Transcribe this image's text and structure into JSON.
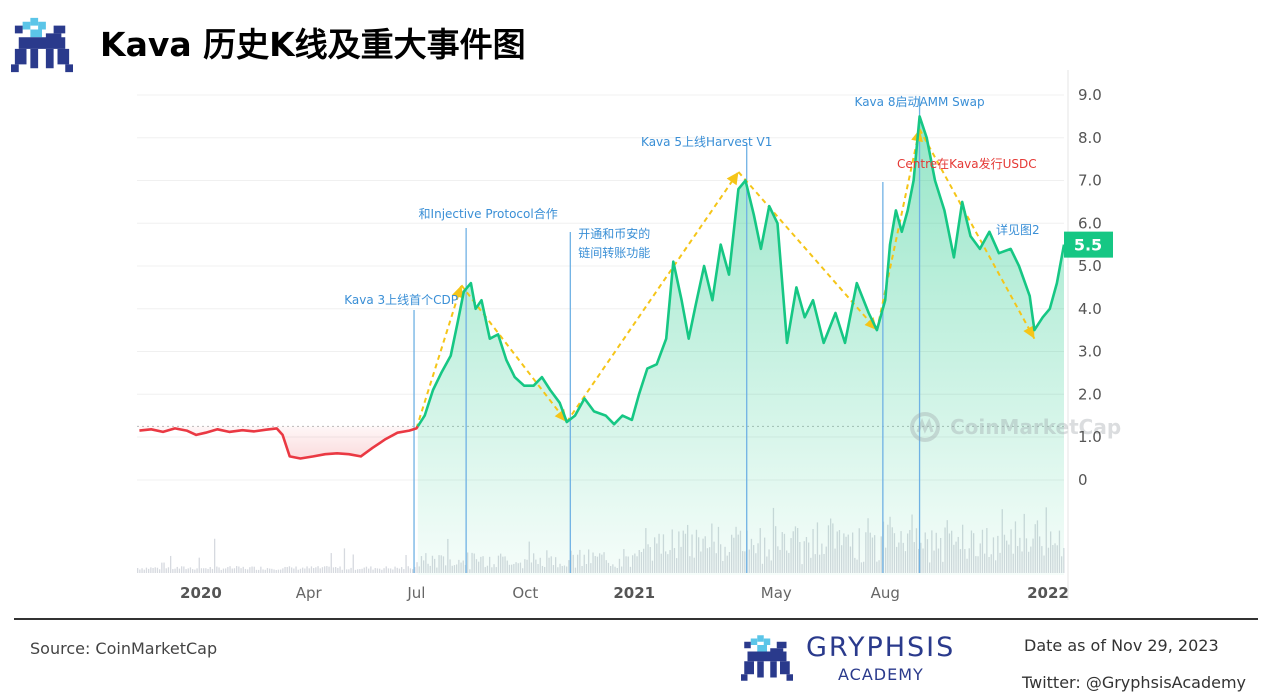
{
  "header": {
    "title": "Kava 历史K线及重大事件图"
  },
  "footer": {
    "source": "Source: CoinMarketCap",
    "brand_name": "GRYPHSIS",
    "brand_sub": "ACADEMY",
    "date": "Date as of Nov 29, 2023",
    "twitter": "Twitter: @GryphsisAcademy"
  },
  "watermark": "CoinMarketCap",
  "colors": {
    "up": "#16c784",
    "down": "#ea3943",
    "event_line": "#6fb1e4",
    "trend": "#f5c518",
    "label_blue": "#3a8fd6",
    "label_red": "#e53935",
    "price_tag": "#16c784"
  },
  "chart_data": {
    "type": "line",
    "series": [
      {
        "points": [
          [
            "2019-11-10",
            1.15
          ],
          [
            "2019-11-20",
            1.18
          ],
          [
            "2019-11-30",
            1.12
          ],
          [
            "2019-12-10",
            1.2
          ],
          [
            "2019-12-20",
            1.15
          ],
          [
            "2019-12-28",
            1.05
          ],
          [
            "2020-01-05",
            1.1
          ],
          [
            "2020-01-15",
            1.18
          ],
          [
            "2020-01-25",
            1.12
          ],
          [
            "2020-02-05",
            1.16
          ],
          [
            "2020-02-15",
            1.13
          ],
          [
            "2020-02-25",
            1.17
          ],
          [
            "2020-03-05",
            1.2
          ],
          [
            "2020-03-10",
            1.05
          ],
          [
            "2020-03-16",
            0.55
          ],
          [
            "2020-03-25",
            0.5
          ],
          [
            "2020-04-05",
            0.55
          ],
          [
            "2020-04-15",
            0.6
          ],
          [
            "2020-04-25",
            0.62
          ],
          [
            "2020-05-05",
            0.6
          ],
          [
            "2020-05-15",
            0.55
          ],
          [
            "2020-05-25",
            0.75
          ],
          [
            "2020-06-05",
            0.95
          ],
          [
            "2020-06-15",
            1.1
          ],
          [
            "2020-06-25",
            1.15
          ],
          [
            "2020-07-01",
            1.2
          ],
          [
            "2020-07-08",
            1.5
          ],
          [
            "2020-07-15",
            2.1
          ],
          [
            "2020-07-22",
            2.5
          ],
          [
            "2020-07-30",
            2.9
          ],
          [
            "2020-08-05",
            3.7
          ],
          [
            "2020-08-10",
            4.4
          ],
          [
            "2020-08-16",
            4.6
          ],
          [
            "2020-08-20",
            4.0
          ],
          [
            "2020-08-25",
            4.2
          ],
          [
            "2020-09-01",
            3.3
          ],
          [
            "2020-09-08",
            3.4
          ],
          [
            "2020-09-15",
            2.8
          ],
          [
            "2020-09-22",
            2.4
          ],
          [
            "2020-09-30",
            2.2
          ],
          [
            "2020-10-08",
            2.2
          ],
          [
            "2020-10-15",
            2.4
          ],
          [
            "2020-10-22",
            2.1
          ],
          [
            "2020-10-30",
            1.8
          ],
          [
            "2020-11-05",
            1.35
          ],
          [
            "2020-11-12",
            1.5
          ],
          [
            "2020-11-20",
            1.9
          ],
          [
            "2020-11-28",
            1.6
          ],
          [
            "2020-12-08",
            1.5
          ],
          [
            "2020-12-15",
            1.3
          ],
          [
            "2020-12-22",
            1.5
          ],
          [
            "2020-12-30",
            1.4
          ],
          [
            "2021-01-05",
            2.0
          ],
          [
            "2021-01-12",
            2.6
          ],
          [
            "2021-01-20",
            2.7
          ],
          [
            "2021-01-28",
            3.3
          ],
          [
            "2021-02-03",
            5.1
          ],
          [
            "2021-02-10",
            4.2
          ],
          [
            "2021-02-16",
            3.3
          ],
          [
            "2021-02-22",
            4.1
          ],
          [
            "2021-03-01",
            5.0
          ],
          [
            "2021-03-08",
            4.2
          ],
          [
            "2021-03-15",
            5.5
          ],
          [
            "2021-03-22",
            4.8
          ],
          [
            "2021-03-30",
            6.8
          ],
          [
            "2021-04-05",
            7.0
          ],
          [
            "2021-04-12",
            6.2
          ],
          [
            "2021-04-18",
            5.4
          ],
          [
            "2021-04-25",
            6.4
          ],
          [
            "2021-05-02",
            6.0
          ],
          [
            "2021-05-10",
            3.2
          ],
          [
            "2021-05-18",
            4.5
          ],
          [
            "2021-05-25",
            3.8
          ],
          [
            "2021-06-01",
            4.2
          ],
          [
            "2021-06-10",
            3.2
          ],
          [
            "2021-06-20",
            3.9
          ],
          [
            "2021-06-28",
            3.2
          ],
          [
            "2021-07-08",
            4.6
          ],
          [
            "2021-07-18",
            3.9
          ],
          [
            "2021-07-25",
            3.5
          ],
          [
            "2021-08-01",
            4.2
          ],
          [
            "2021-08-05",
            5.5
          ],
          [
            "2021-08-10",
            6.3
          ],
          [
            "2021-08-15",
            5.8
          ],
          [
            "2021-08-20",
            6.3
          ],
          [
            "2021-08-25",
            7.0
          ],
          [
            "2021-08-30",
            8.5
          ],
          [
            "2021-09-05",
            8.0
          ],
          [
            "2021-09-12",
            7.0
          ],
          [
            "2021-09-20",
            6.3
          ],
          [
            "2021-09-28",
            5.2
          ],
          [
            "2021-10-05",
            6.5
          ],
          [
            "2021-10-12",
            5.7
          ],
          [
            "2021-10-20",
            5.4
          ],
          [
            "2021-10-28",
            5.8
          ],
          [
            "2021-11-05",
            5.3
          ],
          [
            "2021-11-15",
            5.4
          ],
          [
            "2021-11-22",
            5.0
          ],
          [
            "2021-12-01",
            4.3
          ],
          [
            "2021-12-05",
            3.5
          ],
          [
            "2021-12-12",
            3.8
          ],
          [
            "2021-12-18",
            4.0
          ],
          [
            "2021-12-24",
            4.6
          ],
          [
            "2021-12-30",
            5.5
          ]
        ]
      }
    ],
    "x_ticks": [
      {
        "label": "2020",
        "date": "2020-01-01",
        "bold": true
      },
      {
        "label": "Apr",
        "date": "2020-04-01"
      },
      {
        "label": "Jul",
        "date": "2020-07-01"
      },
      {
        "label": "Oct",
        "date": "2020-10-01"
      },
      {
        "label": "2021",
        "date": "2021-01-01",
        "bold": true
      },
      {
        "label": "May",
        "date": "2021-05-01"
      },
      {
        "label": "Aug",
        "date": "2021-08-01"
      },
      {
        "label": "2022",
        "date": "2022-01-01",
        "bold": true
      }
    ],
    "y_ticks": [
      {
        "label": "9.0",
        "value": 9
      },
      {
        "label": "8.0",
        "value": 8
      },
      {
        "label": "7.0",
        "value": 7
      },
      {
        "label": "6.0",
        "value": 6
      },
      {
        "label": "5.0",
        "value": 5
      },
      {
        "label": "4.0",
        "value": 4
      },
      {
        "label": "3.0",
        "value": 3
      },
      {
        "label": "2.0",
        "value": 2
      },
      {
        "label": "1.0",
        "value": 1
      },
      {
        "label": "0",
        "value": 0
      }
    ],
    "ylim": [
      0,
      9
    ],
    "baseline": 1.25,
    "current_price": {
      "label": "5.5",
      "value": 5.5
    },
    "events": [
      {
        "date": "2020-06-29",
        "lines": [
          "Kava 3上线首个CDP"
        ],
        "color": "blue"
      },
      {
        "date": "2020-08-12",
        "lines": [
          "和Injective Protocol合作"
        ],
        "color": "blue"
      },
      {
        "date": "2020-11-08",
        "lines": [
          "开通和币安的",
          "链间转账功能"
        ],
        "color": "blue"
      },
      {
        "date": "2021-04-06",
        "lines": [
          "Kava 5上线Harvest V1"
        ],
        "color": "blue"
      },
      {
        "date": "2021-07-30",
        "lines": [
          "Centre在Kava发行USDC"
        ],
        "color": "red"
      },
      {
        "date": "2021-08-30",
        "lines": [
          "Kava 8启动AMM Swap"
        ],
        "color": "blue"
      }
    ],
    "trend_note": "详见图2",
    "trend_points": [
      [
        "2020-07-01",
        1.2
      ],
      [
        "2020-08-08",
        4.55
      ],
      [
        "2020-11-05",
        1.35
      ],
      [
        "2021-03-30",
        7.2
      ],
      [
        "2021-07-25",
        3.5
      ],
      [
        "2021-08-30",
        8.2
      ],
      [
        "2021-12-05",
        3.3
      ]
    ]
  }
}
